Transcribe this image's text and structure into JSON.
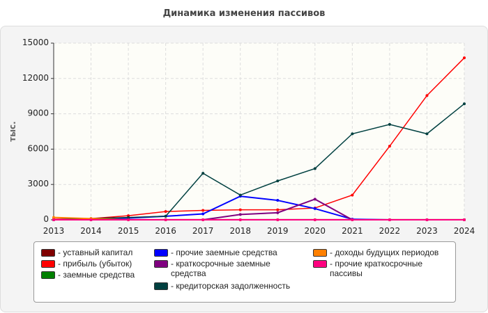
{
  "chart_data": {
    "type": "line",
    "title": "Динамика изменения пассивов",
    "ylabel": "тыс.",
    "xlabel": "",
    "ylim": [
      0,
      15000
    ],
    "yticks": [
      "0",
      "3000",
      "6000",
      "9000",
      "12000",
      "15000"
    ],
    "categories": [
      "2013",
      "2014",
      "2015",
      "2016",
      "2017",
      "2018",
      "2019",
      "2020",
      "2021",
      "2022",
      "2023",
      "2024"
    ],
    "grid": true,
    "legend_placement": "bottom",
    "series": [
      {
        "name": "- уставный капитал",
        "color": "#800000",
        "values": [
          10,
          10,
          10,
          10,
          10,
          10,
          10,
          10,
          10,
          10,
          10,
          10
        ]
      },
      {
        "name": "- прибыль (убыток)",
        "color": "#ff0000",
        "values": [
          50,
          100,
          350,
          700,
          800,
          850,
          850,
          1000,
          2100,
          6250,
          10550,
          13750
        ]
      },
      {
        "name": "- заемные средства",
        "color": "#008000",
        "values": [
          0,
          0,
          0,
          0,
          0,
          0,
          0,
          0,
          0,
          0,
          0,
          0
        ]
      },
      {
        "name": "- прочие заемные средства",
        "color": "#0000ff",
        "values": [
          0,
          50,
          150,
          300,
          500,
          2000,
          1650,
          950,
          50,
          0,
          0,
          0
        ]
      },
      {
        "name": "- краткосрочные заемные средства",
        "color": "#800080",
        "values": [
          0,
          0,
          0,
          0,
          0,
          450,
          600,
          1750,
          0,
          0,
          0,
          0
        ]
      },
      {
        "name": "- кредиторская задолженность",
        "color": "#004040",
        "values": [
          0,
          100,
          200,
          300,
          3950,
          2100,
          3300,
          4350,
          7300,
          8100,
          7300,
          9850
        ]
      },
      {
        "name": "- доходы будущих периодов",
        "color": "#ff8000",
        "values": [
          200,
          100,
          0,
          0,
          0,
          0,
          0,
          0,
          0,
          0,
          0,
          0
        ]
      },
      {
        "name": "- прочие краткосрочные пассивы",
        "color": "#ff0080",
        "values": [
          0,
          0,
          0,
          0,
          0,
          0,
          0,
          0,
          0,
          0,
          0,
          0
        ]
      }
    ]
  }
}
